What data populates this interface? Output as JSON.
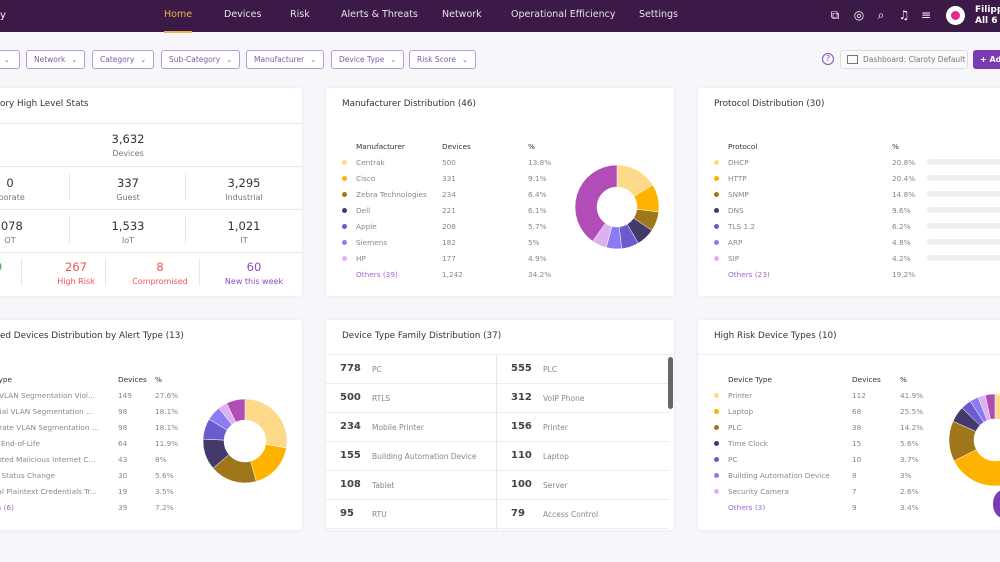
{
  "nav": {
    "brand": "y",
    "tabs": [
      "Home",
      "Devices",
      "Risk",
      "Alerts & Threats",
      "Network",
      "Operational Efficiency",
      "Settings"
    ],
    "active": "Home",
    "icons": [
      "screenshot-icon",
      "support-icon",
      "search-icon",
      "notifications-icon",
      "filter-icon"
    ],
    "user_name": "Filipp",
    "user_sub": "All 6 S"
  },
  "filters": [
    "",
    "Network",
    "Category",
    "Sub-Category",
    "Manufacturer",
    "Device Type",
    "Risk Score"
  ],
  "toolbar": {
    "help": "?",
    "dashboard": "Dashboard: Claroty Default",
    "add": "+ Ad"
  },
  "stats": {
    "title": "ory High Level Stats",
    "total": {
      "value": "3,632",
      "label": "Devices"
    },
    "row1": [
      {
        "value": "0",
        "label": "rporate"
      },
      {
        "value": "337",
        "label": "Guest"
      },
      {
        "value": "3,295",
        "label": "Industrial"
      }
    ],
    "row2": [
      {
        "value": ",078",
        "label": "OT"
      },
      {
        "value": "1,533",
        "label": "IoT"
      },
      {
        "value": "1,021",
        "label": "IT"
      }
    ],
    "row3": [
      {
        "value": "29",
        "label": "ne",
        "color": "#4caf50"
      },
      {
        "value": "267",
        "label": "High Risk",
        "color": "#f05454"
      },
      {
        "value": "8",
        "label": "Compromised",
        "color": "#f05454"
      },
      {
        "value": "60",
        "label": "New this week",
        "color": "#8a4cc2"
      }
    ]
  },
  "manufacturer": {
    "title": "Manufacturer Distribution (46)",
    "headers": [
      "Manufacturer",
      "Devices",
      "%"
    ],
    "rows": [
      {
        "name": "Centrak",
        "devices": "500",
        "pct": "13.8%",
        "color": "#fdd98a"
      },
      {
        "name": "Cisco",
        "devices": "331",
        "pct": "9.1%",
        "color": "#fdb300"
      },
      {
        "name": "Zebra Technologies",
        "devices": "234",
        "pct": "6.4%",
        "color": "#a0761a"
      },
      {
        "name": "Dell",
        "devices": "221",
        "pct": "6.1%",
        "color": "#433a6b"
      },
      {
        "name": "Apple",
        "devices": "208",
        "pct": "5.7%",
        "color": "#6a5ccc"
      },
      {
        "name": "Siemens",
        "devices": "182",
        "pct": "5%",
        "color": "#8b7cf6"
      },
      {
        "name": "HP",
        "devices": "177",
        "pct": "4.9%",
        "color": "#ddb0f0"
      }
    ],
    "others": {
      "name": "Others (39)",
      "devices": "1,242",
      "pct": "34.2%",
      "color": "#b24db8"
    }
  },
  "protocol": {
    "title": "Protocol Distribution (30)",
    "headers": [
      "Protocol",
      "%"
    ],
    "rows": [
      {
        "name": "DHCP",
        "pct": "20.8%",
        "value": 20.8,
        "color": "#fdd98a"
      },
      {
        "name": "HTTP",
        "pct": "20.4%",
        "value": 20.4,
        "color": "#fdb300"
      },
      {
        "name": "SNMP",
        "pct": "14.8%",
        "value": 14.8,
        "color": "#a0761a"
      },
      {
        "name": "DNS",
        "pct": "9.6%",
        "value": 9.6,
        "color": "#433a6b"
      },
      {
        "name": "TLS 1.2",
        "pct": "6.2%",
        "value": 6.2,
        "color": "#6a5ccc"
      },
      {
        "name": "ARP",
        "pct": "4.8%",
        "value": 4.8,
        "color": "#8b7cf6"
      },
      {
        "name": "SIP",
        "pct": "4.2%",
        "value": 4.2,
        "color": "#ddb0f0"
      }
    ],
    "others": {
      "name": "Others (23)",
      "pct": "19.2%"
    }
  },
  "alerts": {
    "title": "ed Devices Distribution by Alert Type (13)",
    "headers": [
      "t Type",
      "Devices",
      "%"
    ],
    "rows": [
      {
        "name": "st VLAN Segmentation Viol...",
        "devices": "149",
        "pct": "27.6%",
        "color": "#fdd98a"
      },
      {
        "name": "strial VLAN Segmentation ...",
        "devices": "98",
        "pct": "18.1%",
        "color": "#fdb300"
      },
      {
        "name": "porate VLAN Segmentation ...",
        "devices": "98",
        "pct": "18.1%",
        "color": "#a0761a"
      },
      {
        "name": "ce End-of-Life",
        "devices": "64",
        "pct": "11.9%",
        "color": "#433a6b"
      },
      {
        "name": "mpted Malicious Internet C...",
        "devices": "43",
        "pct": "8%",
        "color": "#6a5ccc"
      },
      {
        "name": "ne Status Change",
        "devices": "30",
        "pct": "5.6%",
        "color": "#8b7cf6"
      },
      {
        "name": "rnal Plaintext Credentials Tr...",
        "devices": "19",
        "pct": "3.5%",
        "color": "#ddb0f0"
      }
    ],
    "others": {
      "name": "ers (6)",
      "devices": "39",
      "pct": "7.2%",
      "color": "#b24db8"
    }
  },
  "device_family": {
    "title": "Device Type Family Distribution (37)",
    "items": [
      {
        "count": "778",
        "name": "PC"
      },
      {
        "count": "555",
        "name": "PLC"
      },
      {
        "count": "500",
        "name": "RTLS"
      },
      {
        "count": "312",
        "name": "VoIP Phone"
      },
      {
        "count": "234",
        "name": "Mobile Printer"
      },
      {
        "count": "156",
        "name": "Printer"
      },
      {
        "count": "155",
        "name": "Building Automation Device"
      },
      {
        "count": "110",
        "name": "Laptop"
      },
      {
        "count": "108",
        "name": "Tablet"
      },
      {
        "count": "100",
        "name": "Server"
      },
      {
        "count": "95",
        "name": "RTU"
      },
      {
        "count": "79",
        "name": "Access Control"
      }
    ]
  },
  "high_risk": {
    "title": "High Risk Device Types (10)",
    "headers": [
      "Device Type",
      "Devices",
      "%"
    ],
    "rows": [
      {
        "name": "Printer",
        "devices": "112",
        "pct": "41.9%",
        "color": "#fdd98a"
      },
      {
        "name": "Laptop",
        "devices": "68",
        "pct": "25.5%",
        "color": "#fdb300"
      },
      {
        "name": "PLC",
        "devices": "38",
        "pct": "14.2%",
        "color": "#a0761a"
      },
      {
        "name": "Time Clock",
        "devices": "15",
        "pct": "5.6%",
        "color": "#433a6b"
      },
      {
        "name": "PC",
        "devices": "10",
        "pct": "3.7%",
        "color": "#6a5ccc"
      },
      {
        "name": "Building Automation Device",
        "devices": "8",
        "pct": "3%",
        "color": "#8b7cf6"
      },
      {
        "name": "Security Camera",
        "devices": "7",
        "pct": "2.6%",
        "color": "#ddb0f0"
      }
    ],
    "others": {
      "name": "Others (3)",
      "devices": "9",
      "pct": "3.4%",
      "color": "#b24db8"
    }
  }
}
